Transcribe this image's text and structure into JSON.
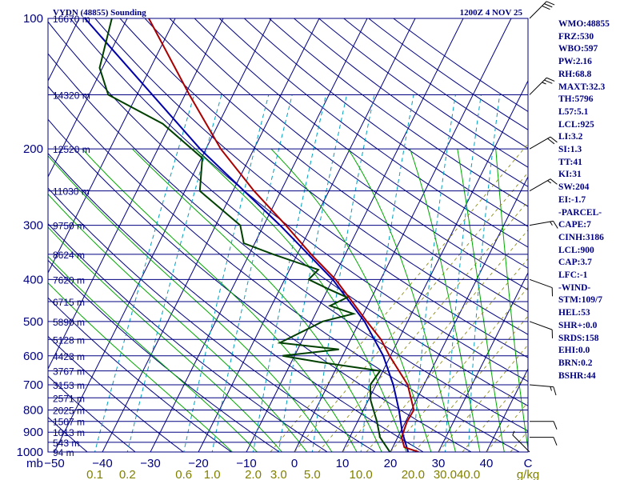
{
  "colors": {
    "axis": "#000080",
    "isotherm": "#000080",
    "dry_adiabat": "#000080",
    "moist_adiabat": "#00aa00",
    "mixing_ratio": "#00a0c0",
    "dashed_grid": "#808000",
    "temperature": "#aa0000",
    "dewpoint": "#004000",
    "parcel": "#0000aa",
    "wind": "#000000"
  },
  "chart_data": {
    "type": "skew-t",
    "title": "VYDN (48855) Sounding",
    "valid_time": "1200Z  4 NOV 25",
    "y_axis_unit": "mb",
    "pressure_ticks": [
      100,
      200,
      300,
      400,
      500,
      600,
      700,
      800,
      900,
      1000
    ],
    "temperature_ticks": [
      "−50",
      "−40",
      "−30",
      "−20",
      "−10",
      "0",
      "10",
      "20",
      "30",
      "40",
      "C"
    ],
    "temperature_tick_values": [
      -50,
      -40,
      -30,
      -20,
      -10,
      0,
      10,
      20,
      30,
      40
    ],
    "mixing_ratio_labels": [
      "0.1",
      "0.2",
      "0.6",
      "1.0",
      "2.0",
      "3.0",
      "5.0",
      "10.0",
      "20.0",
      "30.0",
      "40.0",
      "g/kg"
    ],
    "height_levels": [
      {
        "p": 100,
        "label": "16670 m"
      },
      {
        "p": 150,
        "label": "14320 m"
      },
      {
        "p": 200,
        "label": "12520 m"
      },
      {
        "p": 250,
        "label": "11030 m"
      },
      {
        "p": 300,
        "label": "9750 m"
      },
      {
        "p": 350,
        "label": "8624 m"
      },
      {
        "p": 400,
        "label": "7620 m"
      },
      {
        "p": 450,
        "label": "6715 m"
      },
      {
        "p": 500,
        "label": "5890 m"
      },
      {
        "p": 550,
        "label": "5128 m"
      },
      {
        "p": 600,
        "label": "4423 m"
      },
      {
        "p": 650,
        "label": "3767 m"
      },
      {
        "p": 700,
        "label": "3153 m"
      },
      {
        "p": 750,
        "label": "2571 m"
      },
      {
        "p": 800,
        "label": "2025 m"
      },
      {
        "p": 850,
        "label": "1507 m"
      },
      {
        "p": 900,
        "label": "1013 m"
      },
      {
        "p": 950,
        "label": "543 m"
      },
      {
        "p": 1000,
        "label": "94 m"
      }
    ],
    "temperature_profile": [
      {
        "p": 1000,
        "t": 25.9
      },
      {
        "p": 975,
        "t": 22.4
      },
      {
        "p": 925,
        "t": 20.8
      },
      {
        "p": 850,
        "t": 20.3
      },
      {
        "p": 800,
        "t": 20.5
      },
      {
        "p": 700,
        "t": 16.6
      },
      {
        "p": 600,
        "t": 9.8
      },
      {
        "p": 550,
        "t": 6.3
      },
      {
        "p": 500,
        "t": 1.5
      },
      {
        "p": 400,
        "t": -9.4
      },
      {
        "p": 350,
        "t": -17.1
      },
      {
        "p": 300,
        "t": -25.4
      },
      {
        "p": 250,
        "t": -35.6
      },
      {
        "p": 200,
        "t": -46.9
      },
      {
        "p": 150,
        "t": -59.1
      },
      {
        "p": 100,
        "t": -75.5
      }
    ],
    "dewpoint_profile": [
      {
        "p": 1000,
        "td": 19.9
      },
      {
        "p": 925,
        "td": 16.3
      },
      {
        "p": 850,
        "td": 14.0
      },
      {
        "p": 760,
        "td": 10.5
      },
      {
        "p": 700,
        "td": 8.8
      },
      {
        "p": 650,
        "td": 9.4
      },
      {
        "p": 620,
        "td": -4.3
      },
      {
        "p": 600,
        "td": -12.5
      },
      {
        "p": 580,
        "td": -1.4
      },
      {
        "p": 560,
        "td": -14.4
      },
      {
        "p": 500,
        "td": -7.7
      },
      {
        "p": 480,
        "td": -2.1
      },
      {
        "p": 460,
        "td": -7.8
      },
      {
        "p": 440,
        "td": -5.1
      },
      {
        "p": 420,
        "td": -10.1
      },
      {
        "p": 400,
        "td": -15.0
      },
      {
        "p": 380,
        "td": -14.0
      },
      {
        "p": 350,
        "td": -25.0
      },
      {
        "p": 330,
        "td": -32.3
      },
      {
        "p": 300,
        "td": -34.9
      },
      {
        "p": 250,
        "td": -46.9
      },
      {
        "p": 210,
        "td": -49.8
      },
      {
        "p": 175,
        "td": -61.6
      },
      {
        "p": 150,
        "td": -76.0
      },
      {
        "p": 130,
        "td": -80.6
      },
      {
        "p": 100,
        "td": -83.2
      }
    ],
    "parcel_profile": [
      {
        "p": 1000,
        "t": 23.7
      },
      {
        "p": 900,
        "t": 20.4
      },
      {
        "p": 800,
        "t": 17.4
      },
      {
        "p": 700,
        "t": 13.6
      },
      {
        "p": 600,
        "t": 8.5
      },
      {
        "p": 500,
        "t": 1.0
      },
      {
        "p": 400,
        "t": -10.0
      },
      {
        "p": 300,
        "t": -26.6
      },
      {
        "p": 200,
        "t": -51.2
      },
      {
        "p": 100,
        "t": -88.8
      }
    ],
    "wind_profile": [
      {
        "p": 100,
        "dir": 45,
        "spd": 30
      },
      {
        "p": 150,
        "dir": 45,
        "spd": 25
      },
      {
        "p": 200,
        "dir": 60,
        "spd": 20
      },
      {
        "p": 250,
        "dir": 60,
        "spd": 15
      },
      {
        "p": 300,
        "dir": 80,
        "spd": 15
      },
      {
        "p": 400,
        "dir": 110,
        "spd": 10
      },
      {
        "p": 500,
        "dir": 110,
        "spd": 10
      },
      {
        "p": 700,
        "dir": 95,
        "spd": 15
      },
      {
        "p": 850,
        "dir": 90,
        "spd": 10
      },
      {
        "p": 925,
        "dir": 90,
        "spd": 10
      },
      {
        "p": 1000,
        "dir": 315,
        "spd": 5
      }
    ]
  },
  "indices": [
    "WMO:48855",
    "FRZ:530",
    "WBO:597",
    "PW:2.16",
    "RH:68.8",
    "MAXT:32.3",
    "TH:5796",
    "L57:5.1",
    "LCL:925",
    "LI:3.2",
    "SI:1.3",
    "TT:41",
    "KI:31",
    "SW:204",
    "EI:-1.7",
    "-PARCEL-",
    "CAPE:7",
    "CINH:3186",
    "LCL:900",
    "CAP:3.7",
    "LFC:-1",
    "-WIND-",
    "STM:109/7",
    "HEL:53",
    "SHR+:0.0",
    "SRDS:158",
    "EHI:0.0",
    "BRN:0.2",
    "BSHR:44"
  ]
}
